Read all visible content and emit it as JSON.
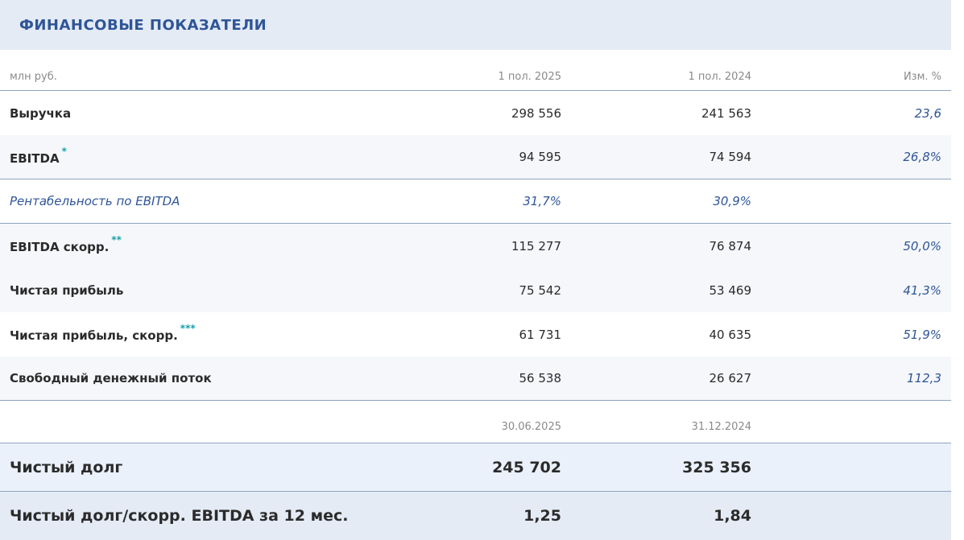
{
  "header": {
    "title": "ФИНАНСОВЫЕ ПОКАЗАТЕЛИ"
  },
  "columns": {
    "unit": "млн руб.",
    "p1": "1 пол. 2025",
    "p2": "1 пол. 2024",
    "change": "Изм. %"
  },
  "rows": [
    {
      "label": "Выручка",
      "note": "",
      "v1": "298 556",
      "v2": "241 563",
      "chg": "23,6"
    },
    {
      "label": "EBITDA",
      "note": "*",
      "v1": "94 595",
      "v2": "74 594",
      "chg": "26,8%"
    },
    {
      "label": "Рентабельность по EBITDA",
      "note": "",
      "v1": "31,7%",
      "v2": "30,9%",
      "chg": ""
    },
    {
      "label": "EBITDA скорр.",
      "note": "**",
      "v1": "115 277",
      "v2": "76 874",
      "chg": "50,0%"
    },
    {
      "label": "Чистая прибыль",
      "note": "",
      "v1": "75 542",
      "v2": "53 469",
      "chg": "41,3%"
    },
    {
      "label": "Чистая прибыль, скорр.",
      "note": "***",
      "v1": "61 731",
      "v2": "40 635",
      "chg": "51,9%"
    },
    {
      "label": "Свободный денежный поток",
      "note": "",
      "v1": "56 538",
      "v2": "26 627",
      "chg": "112,3"
    }
  ],
  "debt_columns": {
    "d1": "30.06.2025",
    "d2": "31.12.2024"
  },
  "debt_rows": [
    {
      "label": "Чистый долг",
      "v1": "245 702",
      "v2": "325 356"
    },
    {
      "label": "Чистый долг/скорр. EBITDA за 12 мес.",
      "v1": "1,25",
      "v2": "1,84"
    }
  ]
}
